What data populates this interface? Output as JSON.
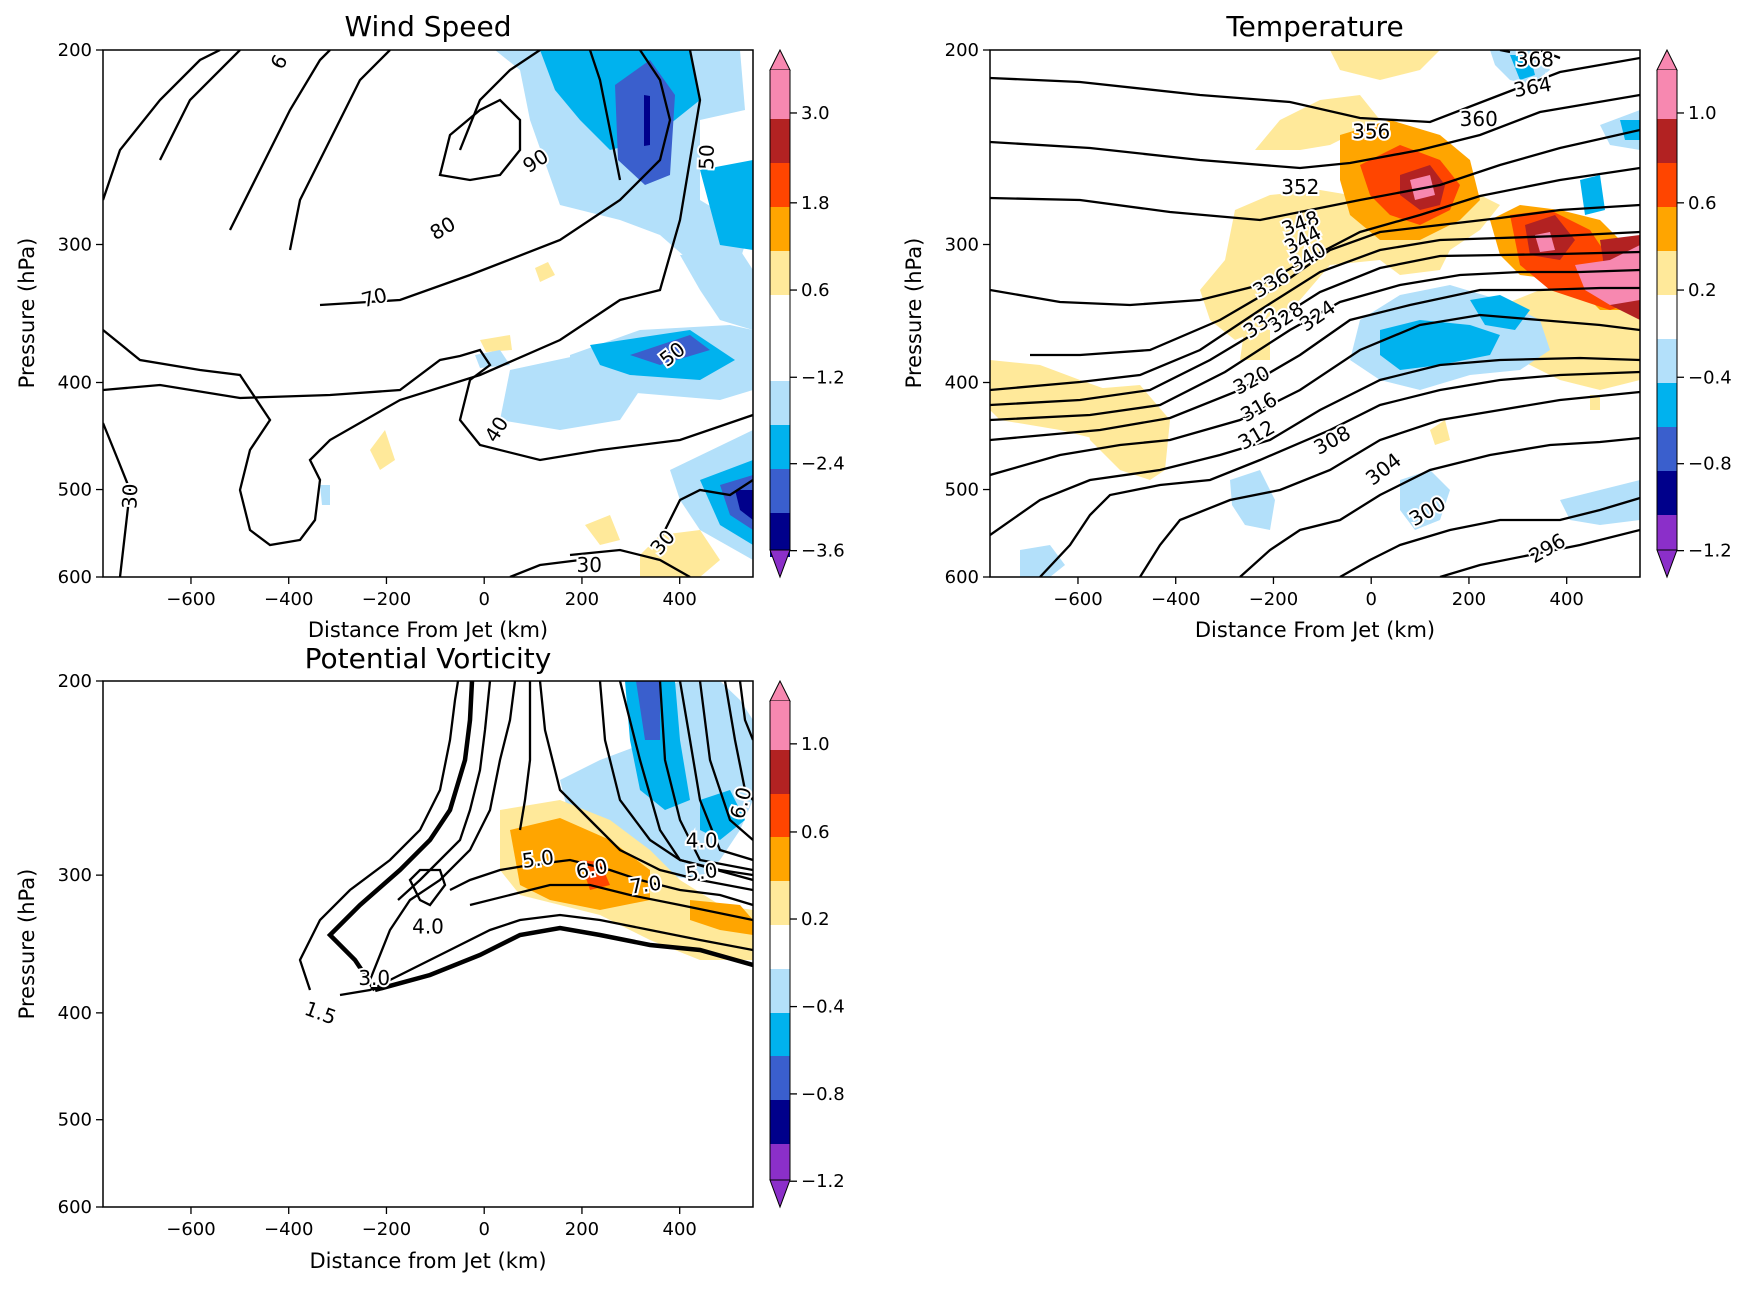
{
  "chart_data": [
    {
      "type": "contour",
      "title": "Wind Speed",
      "xlabel": "Distance From Jet (km)",
      "ylabel": "Pressure (hPa)",
      "xlim": [
        -780,
        550
      ],
      "ylim": [
        600,
        200
      ],
      "y_scale": "log",
      "xticks": [
        -600,
        -400,
        -200,
        0,
        200,
        400
      ],
      "yticks": [
        200,
        300,
        400,
        500,
        600
      ],
      "colorbar_ticks": [
        "3.0",
        "1.8",
        "0.6",
        "−1.2",
        "−2.4",
        "−3.6"
      ],
      "contour_labels": [
        {
          "text": "6",
          "x": -420,
          "y": 205,
          "rot": -62
        },
        {
          "text": "90",
          "x": 105,
          "y": 252,
          "rot": -33
        },
        {
          "text": "80",
          "x": -85,
          "y": 290,
          "rot": -30
        },
        {
          "text": "70",
          "x": -225,
          "y": 335,
          "rot": -15
        },
        {
          "text": "50",
          "x": 455,
          "y": 250,
          "rot": -88
        },
        {
          "text": "50",
          "x": 385,
          "y": 377,
          "rot": -38
        },
        {
          "text": "40",
          "x": 25,
          "y": 441,
          "rot": -58
        },
        {
          "text": "30",
          "x": -725,
          "y": 507,
          "rot": -88
        },
        {
          "text": "30",
          "x": 365,
          "y": 558,
          "rot": -50
        },
        {
          "text": "30",
          "x": 215,
          "y": 585,
          "rot": 0
        }
      ],
      "contour_levels_drawn": [
        30,
        40,
        50,
        60,
        70,
        80,
        90
      ],
      "shading": [
        {
          "kind": "blue",
          "x": [
            -60,
            500
          ],
          "y": [
            200,
            330
          ]
        },
        {
          "kind": "darkblue",
          "x": [
            260,
            420
          ],
          "y": [
            215,
            285
          ]
        },
        {
          "kind": "blue",
          "x": [
            180,
            560
          ],
          "y": [
            340,
            405
          ]
        },
        {
          "kind": "darkblue",
          "x": [
            480,
            560
          ],
          "y": [
            490,
            540
          ]
        }
      ]
    },
    {
      "type": "contour",
      "title": "Temperature",
      "xlabel": "Distance From Jet (km)",
      "ylabel": "Pressure (hPa)",
      "xlim": [
        -780,
        550
      ],
      "ylim": [
        600,
        200
      ],
      "y_scale": "log",
      "xticks": [
        -600,
        -400,
        -200,
        0,
        200,
        400
      ],
      "yticks": [
        200,
        300,
        400,
        500,
        600
      ],
      "colorbar_ticks": [
        "1.0",
        "0.6",
        "0.2",
        "−0.4",
        "−0.8",
        "−1.2"
      ],
      "contour_labels": [
        {
          "text": "368",
          "x": 335,
          "y": 204,
          "rot": 0
        },
        {
          "text": "364",
          "x": 330,
          "y": 216,
          "rot": -10
        },
        {
          "text": "360",
          "x": 220,
          "y": 231,
          "rot": 0
        },
        {
          "text": "356",
          "x": 0,
          "y": 237,
          "rot": 0
        },
        {
          "text": "352",
          "x": -145,
          "y": 266,
          "rot": 0
        },
        {
          "text": "348",
          "x": -145,
          "y": 287,
          "rot": -20
        },
        {
          "text": "344",
          "x": -140,
          "y": 297,
          "rot": -28
        },
        {
          "text": "340",
          "x": -130,
          "y": 308,
          "rot": -30
        },
        {
          "text": "336",
          "x": -205,
          "y": 325,
          "rot": -30
        },
        {
          "text": "332",
          "x": -225,
          "y": 353,
          "rot": -35
        },
        {
          "text": "328",
          "x": -175,
          "y": 349,
          "rot": -35
        },
        {
          "text": "324",
          "x": -110,
          "y": 348,
          "rot": -35
        },
        {
          "text": "320",
          "x": -245,
          "y": 398,
          "rot": -28
        },
        {
          "text": "316",
          "x": -230,
          "y": 421,
          "rot": -30
        },
        {
          "text": "312",
          "x": -235,
          "y": 446,
          "rot": -30
        },
        {
          "text": "308",
          "x": -80,
          "y": 451,
          "rot": -28
        },
        {
          "text": "304",
          "x": 25,
          "y": 479,
          "rot": -38
        },
        {
          "text": "300",
          "x": 115,
          "y": 523,
          "rot": -30
        },
        {
          "text": "296",
          "x": 360,
          "y": 565,
          "rot": -30
        }
      ],
      "contour_levels_drawn": [
        296,
        300,
        304,
        308,
        312,
        316,
        320,
        324,
        328,
        332,
        336,
        340,
        344,
        348,
        352,
        356,
        360,
        364,
        368
      ],
      "shading": [
        {
          "kind": "warm",
          "x": [
            -60,
            300
          ],
          "y": [
            240,
            335
          ]
        },
        {
          "kind": "warm",
          "x": [
            260,
            560
          ],
          "y": [
            285,
            360
          ]
        },
        {
          "kind": "yellow",
          "x": [
            -760,
            -400
          ],
          "y": [
            390,
            480
          ]
        },
        {
          "kind": "blue",
          "x": [
            -60,
            420
          ],
          "y": [
            330,
            420
          ]
        }
      ]
    },
    {
      "type": "contour",
      "title": "Potential Vorticity",
      "xlabel": "Distance from Jet (km)",
      "ylabel": "Pressure (hPa)",
      "xlim": [
        -780,
        550
      ],
      "ylim": [
        600,
        200
      ],
      "y_scale": "log",
      "xticks": [
        -600,
        -400,
        -200,
        0,
        200,
        400
      ],
      "yticks": [
        200,
        300,
        400,
        500,
        600
      ],
      "colorbar_ticks": [
        "1.0",
        "0.6",
        "0.2",
        "−0.4",
        "−0.8",
        "−1.2"
      ],
      "contour_labels": [
        {
          "text": "1.5",
          "x": -335,
          "y": 400,
          "rot": 20
        },
        {
          "text": "3.0",
          "x": -225,
          "y": 372,
          "rot": 0
        },
        {
          "text": "4.0",
          "x": -115,
          "y": 334,
          "rot": 0
        },
        {
          "text": "5.0",
          "x": 110,
          "y": 290,
          "rot": -8
        },
        {
          "text": "6.0",
          "x": 220,
          "y": 296,
          "rot": -12
        },
        {
          "text": "7.0",
          "x": 330,
          "y": 306,
          "rot": -8
        },
        {
          "text": "4.0",
          "x": 445,
          "y": 279,
          "rot": 0
        },
        {
          "text": "5.0",
          "x": 445,
          "y": 298,
          "rot": -8
        },
        {
          "text": "6.0",
          "x": 525,
          "y": 258,
          "rot": -75
        }
      ],
      "contour_levels_drawn": [
        1.5,
        2.0,
        3.0,
        4.0,
        5.0,
        6.0,
        7.0
      ],
      "shading": [
        {
          "kind": "warm",
          "x": [
            80,
            380
          ],
          "y": [
            280,
            335
          ]
        },
        {
          "kind": "blue",
          "x": [
            220,
            400
          ],
          "y": [
            200,
            270
          ]
        }
      ]
    }
  ]
}
